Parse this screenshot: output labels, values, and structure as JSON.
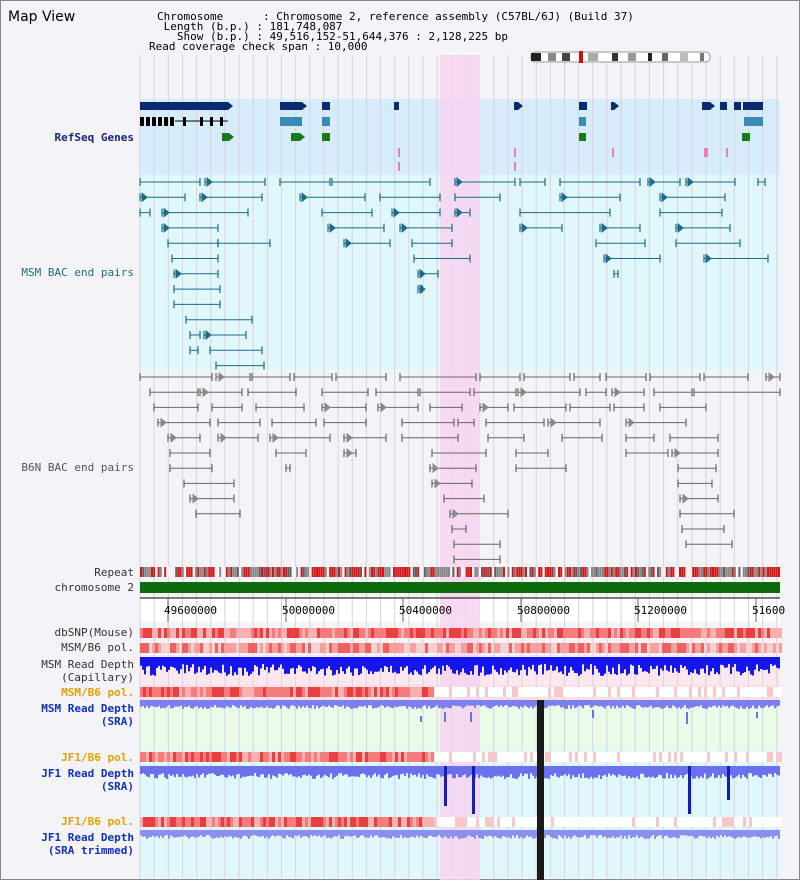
{
  "header": {
    "title": "Map View",
    "info_lines": [
      "Chromosome      : Chromosome 2, reference assembly (C57BL/6J) (Build 37)",
      " Length (b.p.) : 181,748,087",
      "   Show (b.p.) : 49,516,152-51,644,376 : 2,128,225 bp",
      "Read coverage check span : 10,000"
    ]
  },
  "tracks": {
    "refseq": "RefSeq Genes",
    "msm_bac": "MSM BAC end pairs",
    "b6n_bac": "B6N BAC end pairs",
    "repeat": "Repeat",
    "chromosome": "chromosome 2",
    "dbsnp": "dbSNP(Mouse)",
    "msm_b6_pol_1": "MSM/B6 pol.",
    "msm_depth_cap": "MSM Read Depth\n(Capillary)",
    "msm_b6_pol_2": "MSM/B6 pol.",
    "msm_depth_sra": "MSM Read Depth\n(SRA)",
    "jf1_b6_pol_1": "JF1/B6 pol.",
    "jf1_depth_sra": "JF1 Read Depth\n(SRA)",
    "jf1_b6_pol_2": "JF1/B6 pol.",
    "jf1_depth_trim": "JF1 Read Depth\n(SRA trimmed)"
  },
  "axis": {
    "ticks": [
      "49600000",
      "50000000",
      "50400000",
      "50800000",
      "51200000",
      "51600"
    ]
  },
  "colors": {
    "highlight": "#f7d3f0",
    "refseq_bg": "#d6ecfa",
    "bac_bg": "#e0f8fc",
    "gene_dark": "#0b2b6e",
    "gene_mid": "#3a8ab8",
    "gene_green": "#1a7a1a",
    "bac_msm": "#1e6a86",
    "bac_b6n": "#666666",
    "chromosome": "#0d6b0d",
    "depth_cap": "#1a1aee",
    "depth_sra": "#7b80ee"
  }
}
